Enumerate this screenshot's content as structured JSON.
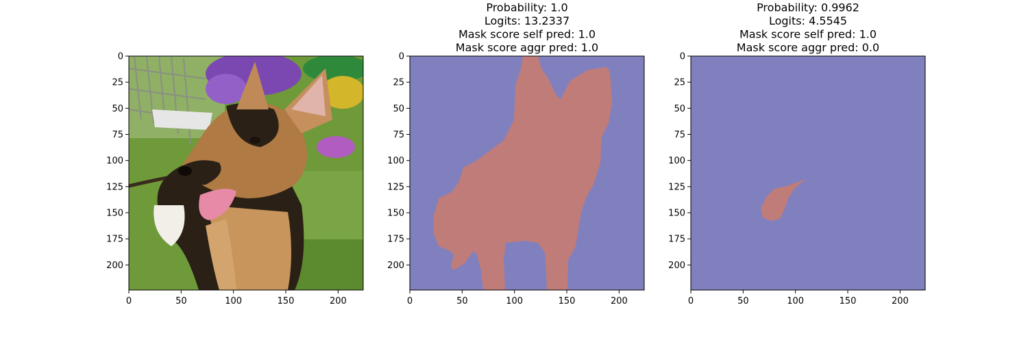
{
  "chart_data": [
    {
      "type": "image",
      "image": "photo-german-shepherd-puppy",
      "title_lines": [],
      "xticks": [
        0,
        50,
        100,
        150,
        200
      ],
      "yticks": [
        0,
        25,
        50,
        75,
        100,
        125,
        150,
        175,
        200
      ],
      "xlim": [
        0,
        224
      ],
      "ylim": [
        224,
        0
      ],
      "grid": false
    },
    {
      "type": "heatmap",
      "image": "segmentation-mask-dog",
      "title_lines": [
        "Probability: 1.0",
        "Logits: 13.2337",
        "Mask score self pred: 1.0",
        "Mask score aggr pred: 1.0"
      ],
      "xticks": [
        0,
        50,
        100,
        150,
        200
      ],
      "yticks": [
        0,
        25,
        50,
        75,
        100,
        125,
        150,
        175,
        200
      ],
      "xlim": [
        0,
        224
      ],
      "ylim": [
        224,
        0
      ],
      "grid": false,
      "colors": {
        "background": "#8080bf",
        "mask": "#bf7c79"
      }
    },
    {
      "type": "heatmap",
      "image": "segmentation-mask-tongue",
      "title_lines": [
        "Probability: 0.9962",
        "Logits: 4.5545",
        "Mask score self pred: 1.0",
        "Mask score aggr pred: 0.0"
      ],
      "xticks": [
        0,
        50,
        100,
        150,
        200
      ],
      "yticks": [
        0,
        25,
        50,
        75,
        100,
        125,
        150,
        175,
        200
      ],
      "xlim": [
        0,
        224
      ],
      "ylim": [
        224,
        0
      ],
      "grid": false,
      "colors": {
        "background": "#8080bf",
        "mask": "#bf7c79"
      }
    }
  ]
}
